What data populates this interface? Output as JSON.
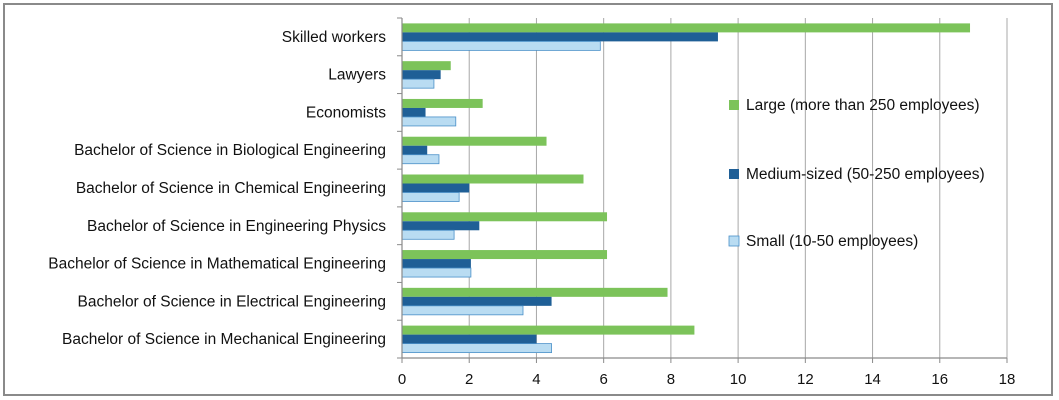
{
  "chart_data": {
    "type": "bar",
    "orientation": "horizontal",
    "categories": [
      "Skilled workers",
      "Lawyers",
      "Economists",
      "Bachelor of Science in Biological Engineering",
      "Bachelor of Science in Chemical Engineering",
      "Bachelor of Science in Engineering Physics",
      "Bachelor of Science in Mathematical Engineering",
      "Bachelor of Science in Electrical Engineering",
      "Bachelor of Science in Mechanical Engineering"
    ],
    "series": [
      {
        "name": "Large (more than 250 employees)",
        "color": "#7cc35a",
        "values": [
          16.9,
          1.45,
          2.4,
          4.3,
          5.4,
          6.1,
          6.1,
          7.9,
          8.7
        ]
      },
      {
        "name": "Medium-sized (50-250 employees)",
        "color": "#1f5f96",
        "values": [
          9.4,
          1.15,
          0.7,
          0.75,
          2.0,
          2.3,
          2.05,
          4.45,
          4.0
        ]
      },
      {
        "name": "Small (10-50 employees)",
        "color": "#b9dcf2",
        "values": [
          5.9,
          0.95,
          1.6,
          1.1,
          1.7,
          1.55,
          2.05,
          3.6,
          4.45
        ]
      }
    ],
    "xlim": [
      0,
      18
    ],
    "xticks": [
      "0",
      "2",
      "4",
      "6",
      "8",
      "10",
      "12",
      "14",
      "16",
      "18"
    ],
    "grid": "vertical",
    "legend_position": "right"
  }
}
